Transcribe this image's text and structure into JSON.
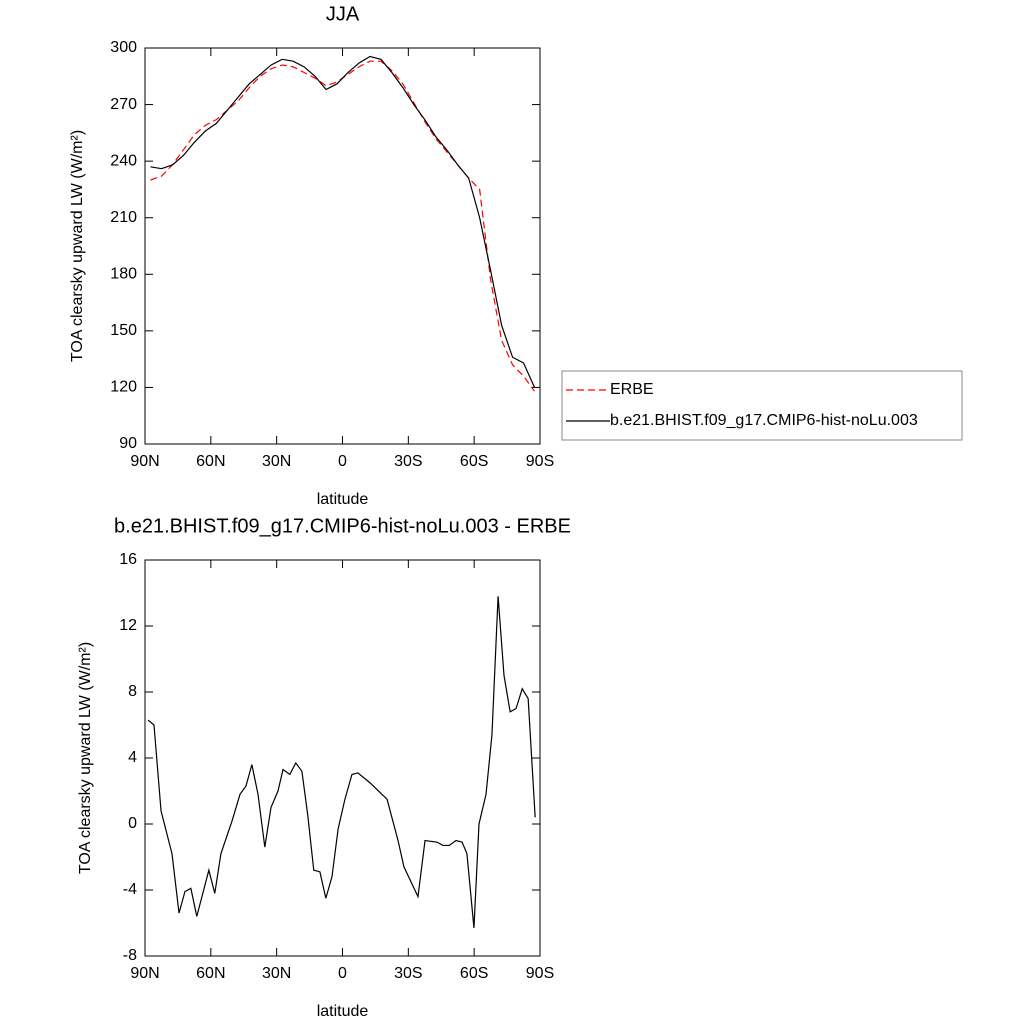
{
  "chart_data": [
    {
      "type": "line",
      "title": "JJA",
      "xlabel": "latitude",
      "ylabel": "TOA clearsky upward LW (W/m²)",
      "xlim": [
        90,
        -90
      ],
      "xticks": [
        {
          "value": 90,
          "label": "90N"
        },
        {
          "value": 60,
          "label": "60N"
        },
        {
          "value": 30,
          "label": "30N"
        },
        0,
        {
          "value": -30,
          "label": "30S"
        },
        {
          "value": -60,
          "label": "60S"
        },
        {
          "value": -90,
          "label": "90S"
        }
      ],
      "ylim": [
        90,
        300
      ],
      "yticks": [
        90,
        120,
        150,
        180,
        210,
        240,
        270,
        300
      ],
      "legend": "right",
      "x": [
        87.5,
        82.5,
        77.5,
        72.5,
        67.5,
        62.5,
        57.5,
        52.5,
        47.5,
        42.5,
        37.5,
        32.5,
        27.5,
        22.5,
        17.5,
        12.5,
        7.5,
        2.5,
        -2.5,
        -7.5,
        -12.5,
        -17.5,
        -22.5,
        -27.5,
        -32.5,
        -37.5,
        -42.5,
        -47.5,
        -52.5,
        -57.5,
        -62.5,
        -67.5,
        -72.5,
        -77.5,
        -82.5,
        -87.5
      ],
      "series": [
        {
          "name": "ERBE",
          "color": "#ff0000",
          "dash": true,
          "values": [
            230,
            232,
            238,
            246,
            254,
            259,
            262,
            267,
            272,
            279,
            285,
            289,
            291,
            290,
            287,
            284,
            280,
            282,
            286,
            290,
            293,
            293,
            288,
            281,
            271,
            261,
            252,
            245,
            238,
            231,
            225,
            177,
            145,
            132,
            126,
            118
          ]
        },
        {
          "name": "b.e21.BHIST.f09_g17.CMIP6-hist-noLu.003",
          "color": "#000000",
          "values": [
            237,
            236,
            238,
            243,
            250,
            256,
            260,
            267,
            274,
            281,
            286,
            291,
            294,
            293,
            290,
            285,
            278,
            281,
            287,
            292,
            295.5,
            294,
            287,
            279,
            270,
            262,
            253,
            246,
            238,
            231,
            210,
            182,
            153,
            136,
            133,
            120
          ]
        }
      ]
    },
    {
      "type": "line",
      "title": "b.e21.BHIST.f09_g17.CMIP6-hist-noLu.003 - ERBE",
      "xlabel": "latitude",
      "ylabel": "TOA clearsky upward LW (W/m²)",
      "xlim": [
        90,
        -90
      ],
      "xticks": [
        {
          "value": 90,
          "label": "90N"
        },
        {
          "value": 60,
          "label": "60N"
        },
        {
          "value": 30,
          "label": "30N"
        },
        0,
        {
          "value": -30,
          "label": "30S"
        },
        {
          "value": -60,
          "label": "60S"
        },
        {
          "value": -90,
          "label": "90S"
        }
      ],
      "ylim": [
        -8,
        16
      ],
      "yticks": [
        -8,
        -4,
        0,
        4,
        8,
        12,
        16
      ],
      "x": [
        88.6,
        85.9,
        82.7,
        77.7,
        74.5,
        71.8,
        69.1,
        66.4,
        60.9,
        58.2,
        55.4,
        50.3,
        46.7,
        44.0,
        41.3,
        38.5,
        35.4,
        32.6,
        29.4,
        27.1,
        24.0,
        21.3,
        18.5,
        15.8,
        13.1,
        10.3,
        7.6,
        4.8,
        2.0,
        -1.1,
        -4.3,
        -7.0,
        -12.5,
        -20.3,
        -25.3,
        -28.0,
        -34.4,
        -37.6,
        -43.1,
        -45.8,
        -48.6,
        -51.7,
        -54.5,
        -56.7,
        -59.9,
        -62.2,
        -65.4,
        -68.1,
        -70.9,
        -73.6,
        -76.4,
        -79.1,
        -81.9,
        -84.6,
        -87.8
      ],
      "series": [
        {
          "color": "#000000",
          "values": [
            6.3,
            6.0,
            0.8,
            -1.8,
            -5.4,
            -4.1,
            -3.9,
            -5.6,
            -2.8,
            -4.2,
            -1.8,
            0.2,
            1.8,
            2.3,
            3.6,
            1.8,
            -1.4,
            1.0,
            2.0,
            3.3,
            3.0,
            3.7,
            3.2,
            0.5,
            -2.8,
            -2.9,
            -4.5,
            -3.2,
            -0.3,
            1.5,
            3.0,
            3.1,
            2.5,
            1.5,
            -1.0,
            -2.6,
            -4.4,
            -1.0,
            -1.1,
            -1.3,
            -1.3,
            -1.0,
            -1.1,
            -1.8,
            -6.3,
            0.0,
            1.8,
            5.4,
            13.8,
            9.0,
            6.8,
            7.0,
            8.2,
            7.6,
            0.4
          ]
        }
      ]
    }
  ]
}
